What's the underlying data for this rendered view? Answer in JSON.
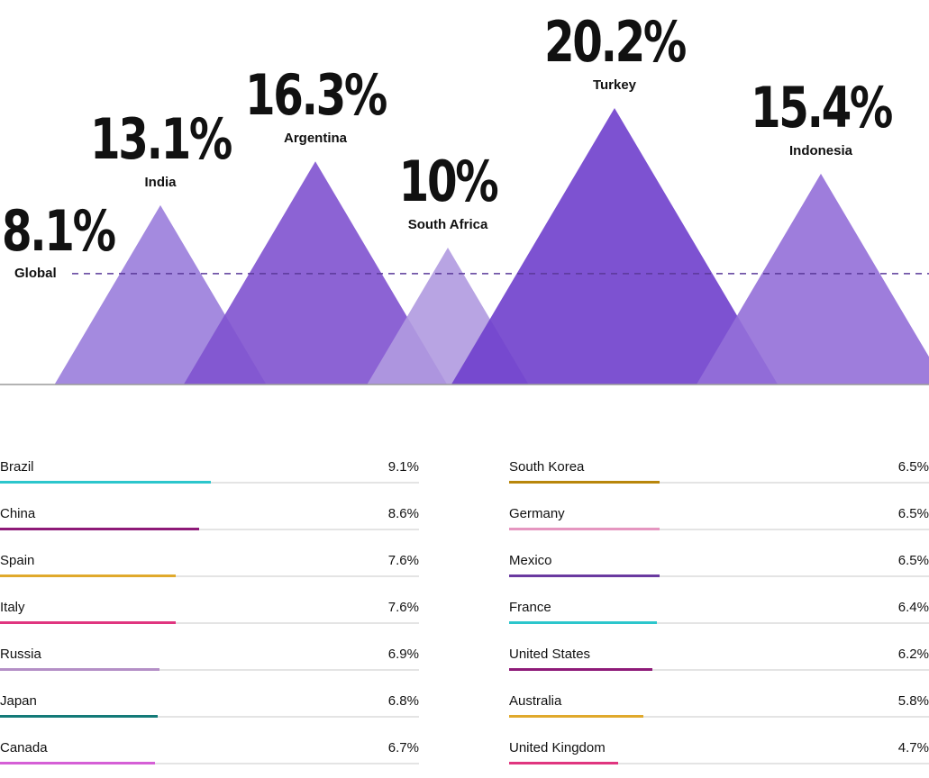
{
  "chart_data": [
    {
      "type": "area",
      "categories": [
        "India",
        "Argentina",
        "South Africa",
        "Turkey",
        "Indonesia"
      ],
      "values": [
        13.1,
        16.3,
        10,
        20.2,
        15.4
      ],
      "value_labels": [
        "13.1%",
        "16.3%",
        "10%",
        "20.2%",
        "15.4%"
      ],
      "reference": {
        "label": "Global",
        "value": 8.1,
        "value_label": "8.1%"
      },
      "colors": [
        "#9a7ddb",
        "#7f52cf",
        "#b09ae0",
        "#6f3fcc",
        "#936fd8"
      ],
      "reference_color": "#5b3a9a"
    },
    {
      "type": "bar",
      "categories": [
        "Brazil",
        "China",
        "Spain",
        "Italy",
        "Russia",
        "Japan",
        "Canada",
        "South Korea",
        "Germany",
        "Mexico",
        "France",
        "United States",
        "Australia",
        "United Kingdom"
      ],
      "values": [
        9.1,
        8.6,
        7.6,
        7.6,
        6.9,
        6.8,
        6.7,
        6.5,
        6.5,
        6.5,
        6.4,
        6.2,
        5.8,
        4.7
      ],
      "value_labels": [
        "9.1%",
        "8.6%",
        "7.6%",
        "7.6%",
        "6.9%",
        "6.8%",
        "6.7%",
        "6.5%",
        "6.5%",
        "6.5%",
        "6.4%",
        "6.2%",
        "5.8%",
        "4.7%"
      ],
      "colors": [
        "#2cc6cc",
        "#8e1a78",
        "#e0a92c",
        "#e0357f",
        "#b48fc6",
        "#137a78",
        "#d55fd6",
        "#b8860b",
        "#e596c0",
        "#6a3aa0",
        "#2cc6cc",
        "#8e1a78",
        "#e0a92c",
        "#e0357f"
      ]
    }
  ]
}
